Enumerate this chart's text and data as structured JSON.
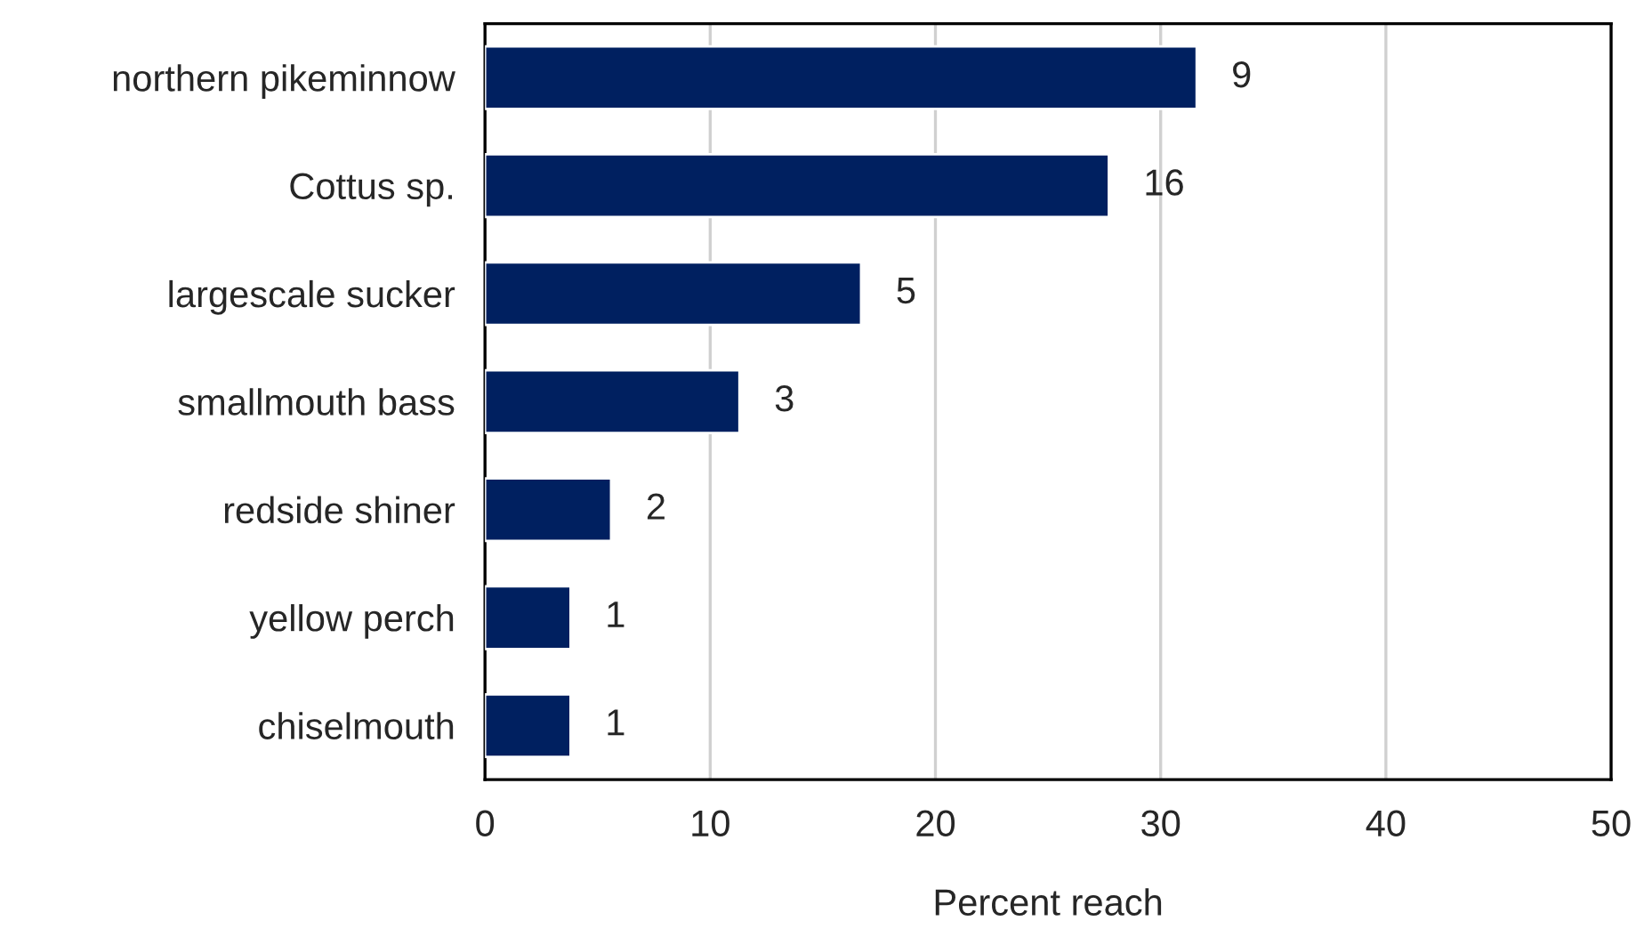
{
  "chart_data": {
    "type": "bar",
    "orientation": "horizontal",
    "xlabel": "Percent reach",
    "categories": [
      "northern pikeminnow",
      "Cottus sp.",
      "largescale sucker",
      "smallmouth bass",
      "redside shiner",
      "yellow perch",
      "chiselmouth"
    ],
    "values": [
      31.6,
      27.7,
      16.7,
      11.3,
      5.6,
      3.8,
      3.8
    ],
    "annotations": [
      {
        "text": "9",
        "x": 31.6,
        "y": "northern pikeminnow"
      },
      {
        "text": "16",
        "x": 27.7,
        "y": "Cottus sp."
      },
      {
        "text": "5",
        "x": 16.7,
        "y": "largescale sucker"
      },
      {
        "text": "3",
        "x": 11.3,
        "y": "smallmouth bass"
      },
      {
        "text": "2",
        "x": 5.6,
        "y": "redside shiner"
      },
      {
        "text": "1",
        "x": 3.8,
        "y": "yellow perch"
      },
      {
        "text": "1",
        "x": 3.8,
        "y": "chiselmouth"
      }
    ],
    "color": "#002060",
    "xlim": [
      0,
      50
    ],
    "xticks": [
      0,
      10,
      20,
      30,
      40,
      50
    ],
    "grid": "x"
  }
}
